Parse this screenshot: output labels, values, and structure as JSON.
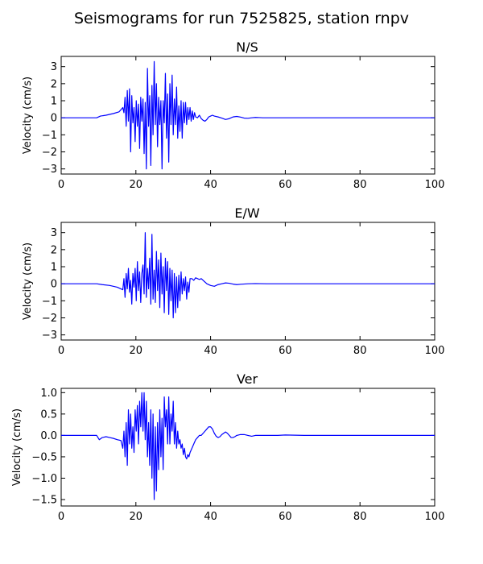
{
  "figure": {
    "title": "Seismograms for run 7525825, station rnpv"
  },
  "chart_data": [
    {
      "type": "line",
      "title": "N/S",
      "xlabel": "",
      "ylabel": "Velocity (cm/s)",
      "xlim": [
        0,
        100
      ],
      "ylim": [
        -3.3,
        3.6
      ],
      "xticks": [
        0,
        20,
        40,
        60,
        80,
        100
      ],
      "yticks": [
        -3,
        -2,
        -1,
        0,
        1,
        2,
        3
      ],
      "color": "#0000ff",
      "series": [
        {
          "x": [
            0,
            9.5,
            10.5,
            12,
            14,
            15.5,
            16.5,
            16.8,
            17.1,
            17.4,
            17.7,
            18.0,
            18.3,
            18.6,
            18.9,
            19.2,
            19.5,
            19.8,
            20.1,
            20.4,
            20.7,
            21.0,
            21.3,
            21.6,
            21.9,
            22.2,
            22.5,
            22.8,
            23.1,
            23.4,
            23.7,
            24.0,
            24.3,
            24.6,
            24.9,
            25.2,
            25.5,
            25.8,
            26.1,
            26.4,
            26.7,
            27.0,
            27.3,
            27.6,
            27.9,
            28.2,
            28.5,
            28.8,
            29.1,
            29.4,
            29.7,
            30.0,
            30.3,
            30.6,
            30.9,
            31.2,
            31.5,
            31.8,
            32.1,
            32.4,
            32.7,
            33.0,
            33.3,
            33.6,
            33.9,
            34.2,
            34.5,
            34.8,
            35.1,
            35.4,
            35.7,
            36.0,
            36.5,
            37.0,
            37.5,
            38.0,
            38.5,
            39.0,
            39.5,
            40.0,
            40.5,
            41.0,
            42.0,
            43.0,
            44.0,
            45.0,
            46.0,
            47.0,
            48.0,
            49.0,
            50.0,
            51.0,
            52.0,
            53.0,
            54.0,
            55.0,
            56.0,
            58.0,
            60.0,
            65.0,
            70.0,
            80.0,
            90.0,
            100.0
          ],
          "y": [
            0,
            0,
            0.1,
            0.15,
            0.25,
            0.35,
            0.6,
            0.3,
            1.2,
            -0.5,
            1.6,
            -0.2,
            1.7,
            -2.0,
            1.3,
            -0.3,
            0.6,
            -1.4,
            1.0,
            -0.5,
            0.8,
            -1.8,
            1.2,
            -0.2,
            1.1,
            -2.1,
            0.9,
            -3.0,
            2.9,
            -0.5,
            1.3,
            -2.8,
            1.9,
            -1.0,
            3.3,
            -0.4,
            2.0,
            -1.7,
            1.2,
            -0.4,
            1.0,
            -3.0,
            1.0,
            -0.3,
            2.6,
            -1.2,
            1.4,
            -2.6,
            2.0,
            -0.4,
            2.5,
            -1.0,
            1.1,
            -0.4,
            1.8,
            -1.2,
            0.7,
            -0.8,
            1.0,
            -1.2,
            0.9,
            -0.3,
            0.9,
            -0.4,
            0.6,
            -0.1,
            0.6,
            -0.2,
            0.4,
            -0.1,
            0.3,
            0.05,
            0.0,
            0.15,
            -0.05,
            -0.15,
            -0.2,
            -0.1,
            0.05,
            0.1,
            0.15,
            0.1,
            0.05,
            -0.02,
            -0.1,
            -0.05,
            0.05,
            0.08,
            0.04,
            -0.02,
            -0.03,
            0.0,
            0.02,
            0.01,
            0.0,
            0.0,
            0.0,
            0.0,
            0.0,
            0.0,
            0.0,
            0.0,
            0.0,
            0.0
          ]
        }
      ]
    },
    {
      "type": "line",
      "title": "E/W",
      "xlabel": "",
      "ylabel": "Velocity (cm/s)",
      "xlim": [
        0,
        100
      ],
      "ylim": [
        -3.3,
        3.6
      ],
      "xticks": [
        0,
        20,
        40,
        60,
        80,
        100
      ],
      "yticks": [
        -3,
        -2,
        -1,
        0,
        1,
        2,
        3
      ],
      "color": "#0000ff",
      "series": [
        {
          "x": [
            0,
            9.5,
            11,
            13,
            15,
            16.5,
            16.8,
            17.1,
            17.4,
            17.7,
            18.0,
            18.3,
            18.6,
            18.9,
            19.2,
            19.5,
            19.8,
            20.1,
            20.4,
            20.7,
            21.0,
            21.3,
            21.6,
            21.9,
            22.2,
            22.5,
            22.8,
            23.1,
            23.4,
            23.7,
            24.0,
            24.3,
            24.6,
            24.9,
            25.2,
            25.5,
            25.8,
            26.1,
            26.4,
            26.7,
            27.0,
            27.3,
            27.6,
            27.9,
            28.2,
            28.5,
            28.8,
            29.1,
            29.4,
            29.7,
            30.0,
            30.3,
            30.6,
            30.9,
            31.2,
            31.5,
            31.8,
            32.1,
            32.4,
            32.7,
            33.0,
            33.3,
            33.6,
            33.9,
            34.2,
            34.5,
            35.0,
            35.5,
            36.0,
            36.5,
            37.0,
            37.5,
            38.0,
            39.0,
            40.0,
            41.0,
            42.0,
            43.0,
            44.0,
            45.0,
            46.0,
            47.0,
            48.0,
            50.0,
            52.0,
            55.0,
            60.0,
            70.0,
            80.0,
            90.0,
            100.0
          ],
          "y": [
            0,
            0,
            -0.05,
            -0.1,
            -0.2,
            -0.35,
            0.3,
            -0.8,
            0.6,
            -0.3,
            0.9,
            -0.5,
            0.2,
            -1.2,
            0.6,
            -0.2,
            0.9,
            -1.0,
            1.3,
            -0.4,
            0.7,
            -1.1,
            0.6,
            1.1,
            -0.6,
            3.0,
            -0.8,
            0.9,
            -0.3,
            1.5,
            -1.2,
            2.9,
            -0.9,
            0.8,
            -1.1,
            1.9,
            -0.4,
            1.4,
            -1.4,
            1.8,
            -0.6,
            1.0,
            -1.7,
            1.5,
            -0.4,
            1.3,
            -1.8,
            0.9,
            -1.0,
            0.8,
            -2.0,
            0.6,
            -1.7,
            0.4,
            -1.4,
            0.5,
            -1.0,
            0.7,
            -0.6,
            0.3,
            -0.4,
            0.4,
            -0.9,
            0.1,
            -0.5,
            0.3,
            0.3,
            0.2,
            0.35,
            0.3,
            0.25,
            0.3,
            0.2,
            0.0,
            -0.1,
            -0.15,
            -0.05,
            0.0,
            0.05,
            0.03,
            -0.02,
            -0.05,
            -0.03,
            0.0,
            0.01,
            0.0,
            0.0,
            0.0,
            0.0,
            0.0,
            0.0
          ]
        }
      ]
    },
    {
      "type": "line",
      "title": "Ver",
      "xlabel": "",
      "ylabel": "Velocity (cm/s)",
      "xlim": [
        0,
        100
      ],
      "ylim": [
        -1.65,
        1.1
      ],
      "xticks": [
        0,
        20,
        40,
        60,
        80,
        100
      ],
      "yticks": [
        -1.5,
        -1.0,
        -0.5,
        0.0,
        0.5,
        1.0
      ],
      "ytick_labels": [
        "−1.5",
        "−1.0",
        "−0.5",
        "0.0",
        "0.5",
        "1.0"
      ],
      "color": "#0000ff",
      "series": [
        {
          "x": [
            0,
            9.5,
            10.2,
            11,
            12,
            13,
            14,
            15,
            16,
            16.5,
            16.8,
            17.1,
            17.4,
            17.7,
            18.0,
            18.3,
            18.6,
            18.9,
            19.2,
            19.5,
            19.8,
            20.1,
            20.4,
            20.7,
            21.0,
            21.3,
            21.6,
            21.9,
            22.2,
            22.5,
            22.8,
            23.1,
            23.4,
            23.7,
            24.0,
            24.3,
            24.6,
            24.9,
            25.2,
            25.5,
            25.8,
            26.1,
            26.4,
            26.7,
            27.0,
            27.3,
            27.6,
            27.9,
            28.2,
            28.5,
            28.8,
            29.1,
            29.4,
            29.7,
            30.0,
            30.3,
            30.6,
            30.9,
            31.2,
            31.5,
            31.8,
            32.1,
            32.4,
            32.7,
            33.0,
            33.3,
            33.6,
            33.9,
            34.2,
            34.5,
            35.0,
            35.5,
            36.0,
            36.5,
            37.0,
            37.5,
            38.0,
            38.5,
            39.0,
            39.5,
            40.0,
            40.5,
            41.0,
            41.5,
            42.0,
            42.5,
            43.0,
            43.5,
            44.0,
            44.5,
            45.0,
            45.5,
            46.0,
            46.5,
            47.0,
            48.0,
            49.0,
            50.0,
            51.0,
            52.0,
            53.0,
            55.0,
            58.0,
            60.0,
            65.0,
            70.0,
            80.0,
            90.0,
            100.0
          ],
          "y": [
            0,
            0,
            -0.1,
            -0.05,
            -0.03,
            -0.05,
            -0.07,
            -0.1,
            -0.12,
            -0.3,
            0.1,
            -0.5,
            0.3,
            -0.7,
            0.6,
            -0.2,
            0.5,
            -0.3,
            0.2,
            -0.4,
            0.6,
            0.1,
            0.7,
            -0.2,
            0.8,
            0.2,
            1.0,
            0.1,
            1.0,
            -0.1,
            0.8,
            -0.5,
            0.3,
            -0.7,
            0.6,
            -1.0,
            0.5,
            -1.5,
            0.2,
            -1.3,
            0.3,
            -0.8,
            0.6,
            -0.5,
            0.4,
            -0.8,
            0.9,
            0.2,
            0.6,
            -0.2,
            0.9,
            -0.2,
            0.5,
            0.1,
            0.8,
            -0.2,
            0.3,
            -0.3,
            0.1,
            -0.2,
            -0.1,
            -0.3,
            -0.2,
            -0.45,
            -0.3,
            -0.5,
            -0.55,
            -0.45,
            -0.5,
            -0.4,
            -0.3,
            -0.2,
            -0.1,
            -0.05,
            0.0,
            0.0,
            0.05,
            0.1,
            0.15,
            0.2,
            0.2,
            0.15,
            0.05,
            -0.02,
            -0.05,
            -0.03,
            0.02,
            0.05,
            0.08,
            0.05,
            0.0,
            -0.05,
            -0.05,
            -0.03,
            0.0,
            0.02,
            0.02,
            0.0,
            -0.02,
            0.0,
            0.0,
            0.0,
            0.0,
            0.01,
            0.0,
            0.0,
            0.0,
            0.0,
            0.0
          ]
        }
      ]
    }
  ]
}
